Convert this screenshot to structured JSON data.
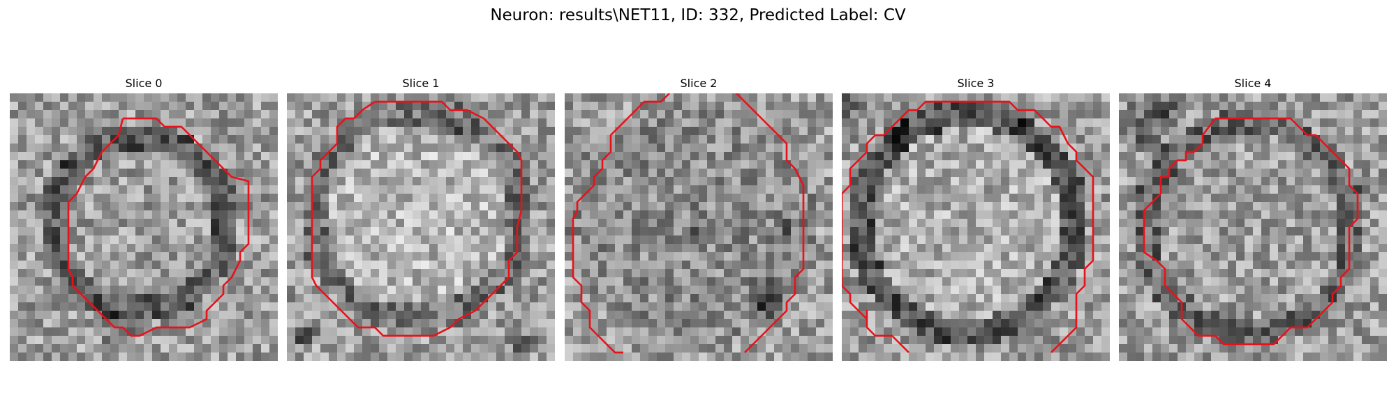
{
  "figure": {
    "title": "Neuron: results\\NET11, ID: 332, Predicted Label: CV"
  },
  "panels": [
    {
      "title": "Slice 0"
    },
    {
      "title": "Slice 1"
    },
    {
      "title": "Slice 2"
    },
    {
      "title": "Slice 3"
    },
    {
      "title": "Slice 4"
    }
  ],
  "colors": {
    "contour": "#e8121a",
    "background": "#ffffff"
  }
}
